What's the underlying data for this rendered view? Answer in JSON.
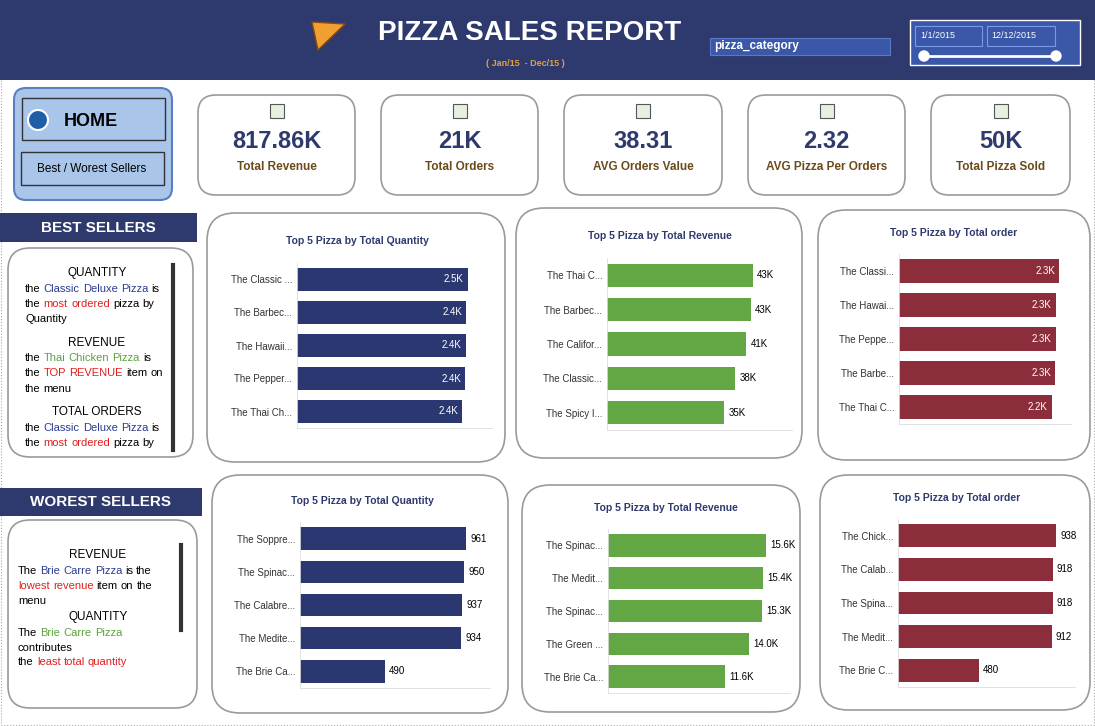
{
  "header": {
    "title": "PIZZA SALES REPORT",
    "subtitle": "( Jan/15  - Dec/15 )",
    "filter": "pizza_category",
    "date_from": "1/1/2015",
    "date_to": "12/12/2015"
  },
  "nav": {
    "home": "HOME",
    "link": "Best / Worest Sellers"
  },
  "kpis": [
    {
      "value": "817.86K",
      "label": "Total Revenue"
    },
    {
      "value": "21K",
      "label": "Total Orders"
    },
    {
      "value": "38.31",
      "label": "AVG Orders Value"
    },
    {
      "value": "2.32",
      "label": "AVG Pizza Per Orders"
    },
    {
      "value": "50K",
      "label": "Total Pizza Sold"
    }
  ],
  "best_sellers": {
    "title": "BEST SELLERS",
    "notes": [
      {
        "heading": "QUANTITY",
        "lines": [
          [
            {
              "text": "the ",
              "color": "#000000"
            },
            {
              "text": "Classic Deluxe Pizza",
              "color": "#2b3b8f"
            },
            {
              "text": " is",
              "color": "#000000"
            }
          ],
          [
            {
              "text": "the ",
              "color": "#000000"
            },
            {
              "text": "most ordered",
              "color": "#e02020"
            },
            {
              "text": " pizza by",
              "color": "#000000"
            }
          ],
          [
            {
              "text": "Quantity",
              "color": "#000000"
            }
          ]
        ]
      },
      {
        "heading": "REVENUE",
        "lines": [
          [
            {
              "text": "the ",
              "color": "#000000"
            },
            {
              "text": "Thai Chicken Pizza",
              "color": "#5aa33c"
            },
            {
              "text": " is",
              "color": "#000000"
            }
          ],
          [
            {
              "text": "the ",
              "color": "#000000"
            },
            {
              "text": "TOP REVENUE",
              "color": "#e02020"
            },
            {
              "text": " item on",
              "color": "#000000"
            }
          ],
          [
            {
              "text": "the menu",
              "color": "#000000"
            }
          ]
        ]
      },
      {
        "heading": "TOTAL ORDERS",
        "lines": [
          [
            {
              "text": "the ",
              "color": "#000000"
            },
            {
              "text": "Classic Deluxe Pizza",
              "color": "#2b3b8f"
            },
            {
              "text": " is",
              "color": "#000000"
            }
          ],
          [
            {
              "text": "the ",
              "color": "#000000"
            },
            {
              "text": "most ordered",
              "color": "#e02020"
            },
            {
              "text": " pizza by",
              "color": "#000000"
            }
          ]
        ]
      }
    ]
  },
  "worst_sellers": {
    "title": "WOREST SELLERS",
    "notes": [
      {
        "heading": "REVENUE",
        "lines": [
          [
            {
              "text": "The ",
              "color": "#000000"
            },
            {
              "text": "Brie Carre Pizza",
              "color": "#2b3b8f"
            },
            {
              "text": " is the",
              "color": "#000000"
            }
          ],
          [
            {
              "text": "lowest revenue",
              "color": "#e02020"
            },
            {
              "text": " item on the",
              "color": "#000000"
            }
          ],
          [
            {
              "text": "menu",
              "color": "#000000"
            }
          ]
        ]
      },
      {
        "heading": "QUANTITY",
        "lines": [
          [
            {
              "text": "The ",
              "color": "#000000"
            },
            {
              "text": "Brie Carre Pizza",
              "color": "#5aa33c"
            }
          ],
          [
            {
              "text": "contributes",
              "color": "#000000"
            }
          ],
          [
            {
              "text": "the ",
              "color": "#000000"
            },
            {
              "text": "least total quantity",
              "color": "#e02020"
            }
          ]
        ]
      }
    ]
  },
  "chart_data": [
    {
      "type": "bar",
      "orientation": "horizontal",
      "title": "Top 5 Pizza by Total Quantity",
      "categories": [
        "The Classic ...",
        "The Barbec...",
        "The Hawaii...",
        "The Pepper...",
        "The Thai Ch..."
      ],
      "values": [
        2453,
        2432,
        2422,
        2418,
        2371
      ],
      "value_labels": [
        "2.5K",
        "2.4K",
        "2.4K",
        "2.4K",
        "2.4K"
      ],
      "color": "#2b3770",
      "xlim": [
        0,
        2800
      ],
      "data_labels": true,
      "tick_labels": "y"
    },
    {
      "type": "bar",
      "orientation": "horizontal",
      "title": "Top 5 Pizza by Total Revenue",
      "categories": [
        "The Thai C...",
        "The Barbec...",
        "The Califor...",
        "The Classic...",
        "The Spicy I..."
      ],
      "values": [
        43434,
        42768,
        41410,
        38180,
        34831
      ],
      "value_labels": [
        "43K",
        "43K",
        "41K",
        "38K",
        "35K"
      ],
      "color": "#62a744",
      "xlim": [
        0,
        55000
      ],
      "data_labels": true,
      "tick_labels": "y"
    },
    {
      "type": "bar",
      "orientation": "horizontal",
      "title": "Top 5 Pizza by Total order",
      "categories": [
        "The Classi...",
        "The Hawai...",
        "The Peppe...",
        "The Barbe...",
        "The Thai C..."
      ],
      "values": [
        2329,
        2280,
        2278,
        2273,
        2225
      ],
      "value_labels": [
        "2.3K",
        "2.3K",
        "2.3K",
        "2.3K",
        "2.2K"
      ],
      "color": "#8b2d3a",
      "xlim": [
        0,
        2500
      ],
      "data_labels": true,
      "tick_labels": "y"
    },
    {
      "type": "bar",
      "orientation": "horizontal",
      "title": "Top 5 Pizza by Total Quantity",
      "categories": [
        "The Soppre...",
        "The Spinac...",
        "The Calabre...",
        "The Medite...",
        "The Brie Ca..."
      ],
      "values": [
        961,
        950,
        937,
        934,
        490
      ],
      "color": "#2b3770",
      "xlim": [
        0,
        1100
      ],
      "data_labels": true,
      "tick_labels": "y"
    },
    {
      "type": "bar",
      "orientation": "horizontal",
      "title": "Top 5 Pizza by Total Revenue",
      "categories": [
        "The Spinac...",
        "The Medit...",
        "The Spinac...",
        "The Green ...",
        "The Brie Ca..."
      ],
      "values": [
        15596,
        15360,
        15278,
        13956,
        11588
      ],
      "value_labels": [
        "15.6K",
        "15.4K",
        "15.3K",
        "14.0K",
        "11.6K"
      ],
      "color": "#62a744",
      "xlim": [
        0,
        18000
      ],
      "data_labels": true,
      "tick_labels": "y"
    },
    {
      "type": "bar",
      "orientation": "horizontal",
      "title": "Top 5 Pizza by Total order",
      "categories": [
        "The Chick...",
        "The Calab...",
        "The Spina...",
        "The Medit...",
        "The Brie C..."
      ],
      "values": [
        938,
        918,
        918,
        912,
        480
      ],
      "color": "#8b2d3a",
      "xlim": [
        0,
        1050
      ],
      "data_labels": true,
      "tick_labels": "y"
    }
  ]
}
